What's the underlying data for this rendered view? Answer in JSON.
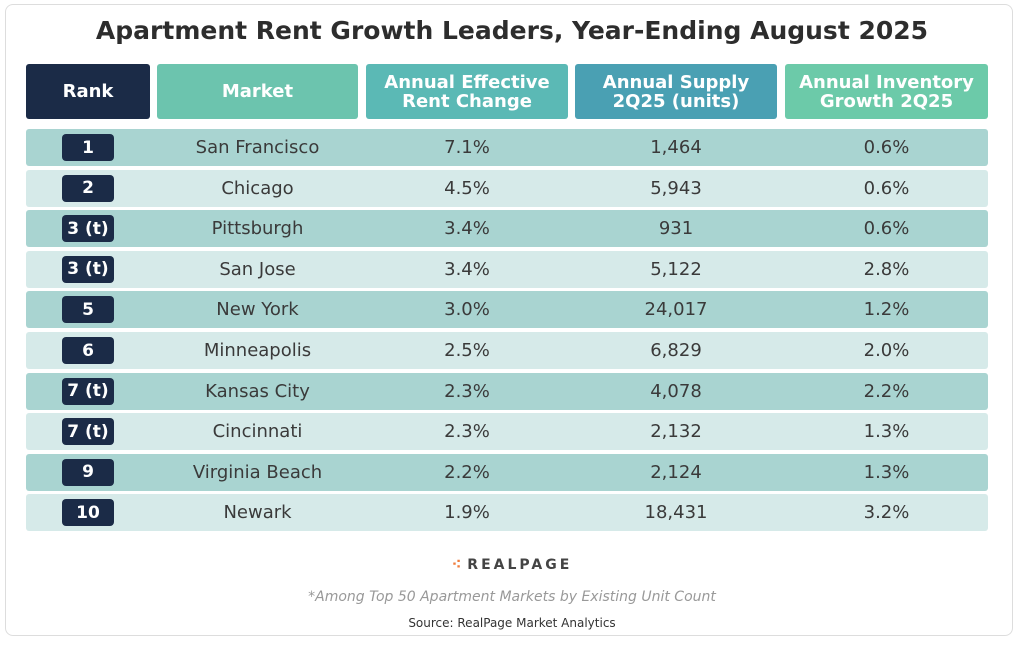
{
  "header": {
    "title": "Apartment Rent Growth Leaders, Year-Ending August 2025"
  },
  "table": {
    "columns": [
      "Rank",
      "Market",
      "Annual Effective Rent Change",
      "Annual Supply 2Q25 (units)",
      "Annual Inventory Growth 2Q25"
    ],
    "rows": [
      [
        "1",
        "San Francisco",
        "7.1%",
        "1,464",
        "0.6%"
      ],
      [
        "2",
        "Chicago",
        "4.5%",
        "5,943",
        "0.6%"
      ],
      [
        "3 (t)",
        "Pittsburgh",
        "3.4%",
        "931",
        "0.6%"
      ],
      [
        "3 (t)",
        "San Jose",
        "3.4%",
        "5,122",
        "2.8%"
      ],
      [
        "5",
        "New York",
        "3.0%",
        "24,017",
        "1.2%"
      ],
      [
        "6",
        "Minneapolis",
        "2.5%",
        "6,829",
        "2.0%"
      ],
      [
        "7 (t)",
        "Kansas City",
        "2.3%",
        "4,078",
        "2.2%"
      ],
      [
        "7 (t)",
        "Cincinnati",
        "2.3%",
        "2,132",
        "1.3%"
      ],
      [
        "9",
        "Virginia Beach",
        "2.2%",
        "2,124",
        "1.3%"
      ],
      [
        "10",
        "Newark",
        "1.9%",
        "18,431",
        "3.2%"
      ]
    ]
  },
  "footer": {
    "logo": "REALPAGE",
    "note": "*Among Top 50 Apartment Markets by Existing Unit Count",
    "source": "Source: RealPage Market Analytics"
  }
}
